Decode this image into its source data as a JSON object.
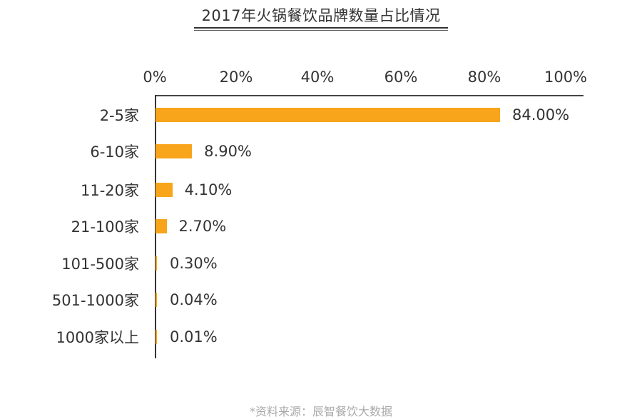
{
  "header": {
    "title": "2017年火锅餐饮品牌数量占比情况"
  },
  "footer": {
    "source": "*资料来源：辰智餐饮大数据"
  },
  "axis": {
    "ticks": [
      "0%",
      "20%",
      "40%",
      "60%",
      "80%",
      "100%"
    ]
  },
  "categories": [
    {
      "label": "2-5家",
      "value_label": "84.00%"
    },
    {
      "label": "6-10家",
      "value_label": "8.90%"
    },
    {
      "label": "11-20家",
      "value_label": "4.10%"
    },
    {
      "label": "21-100家",
      "value_label": "2.70%"
    },
    {
      "label": "101-500家",
      "value_label": "0.30%"
    },
    {
      "label": "501-1000家",
      "value_label": "0.04%"
    },
    {
      "label": "1000家以上",
      "value_label": "0.01%"
    }
  ],
  "colors": {
    "bar": "#F8A51B",
    "text": "#333333",
    "source": "#AAAAAA"
  },
  "chart_data": {
    "type": "bar",
    "orientation": "horizontal",
    "title": "2017年火锅餐饮品牌数量占比情况",
    "categories": [
      "2-5家",
      "6-10家",
      "11-20家",
      "21-100家",
      "101-500家",
      "501-1000家",
      "1000家以上"
    ],
    "values": [
      84.0,
      8.9,
      4.1,
      2.7,
      0.3,
      0.04,
      0.01
    ],
    "value_labels": [
      "84.00%",
      "8.90%",
      "4.10%",
      "2.70%",
      "0.30%",
      "0.04%",
      "0.01%"
    ],
    "xlabel": "",
    "ylabel": "",
    "xlim": [
      0,
      100
    ],
    "x_ticks": [
      "0%",
      "20%",
      "40%",
      "60%",
      "80%",
      "100%"
    ],
    "x_axis_position": "top",
    "grid": false,
    "legend": null,
    "bar_color": "#F8A51B",
    "annotation": "*资料来源：辰智餐饮大数据"
  }
}
